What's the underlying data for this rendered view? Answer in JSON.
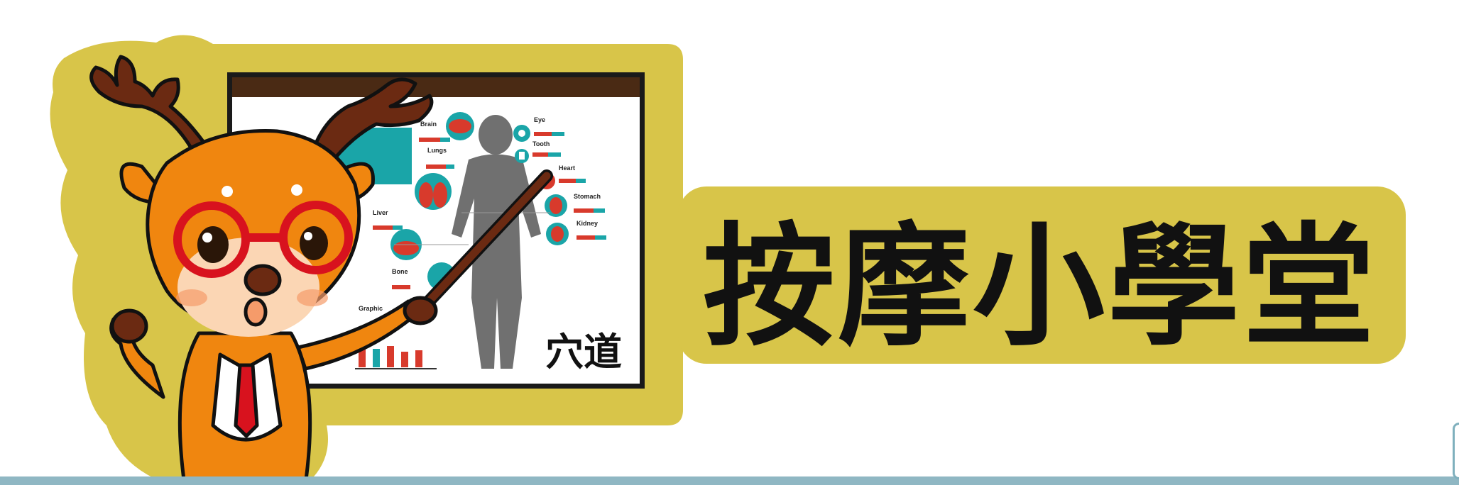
{
  "title": "按摩小學堂",
  "board_label": "穴道",
  "infographic_labels": [
    "Brain",
    "Eye",
    "Lungs",
    "Tooth",
    "Heart",
    "Stomach",
    "Liver",
    "Kidney",
    "Bone",
    "Graphic"
  ],
  "icons": [
    "deer-mascot",
    "pointer-stick",
    "anatomy-board"
  ],
  "colors": {
    "plate": "#d8c549",
    "title_text": "#111111",
    "deer_orange": "#f0860f",
    "glasses_red": "#d8121e",
    "antler_brown": "#6b2a12",
    "board_header": "#4a2a14",
    "teal": "#1aa5a8",
    "organ_red": "#d83a2c",
    "silhouette": "#707070",
    "bottom_band": "#8fb7c3"
  }
}
